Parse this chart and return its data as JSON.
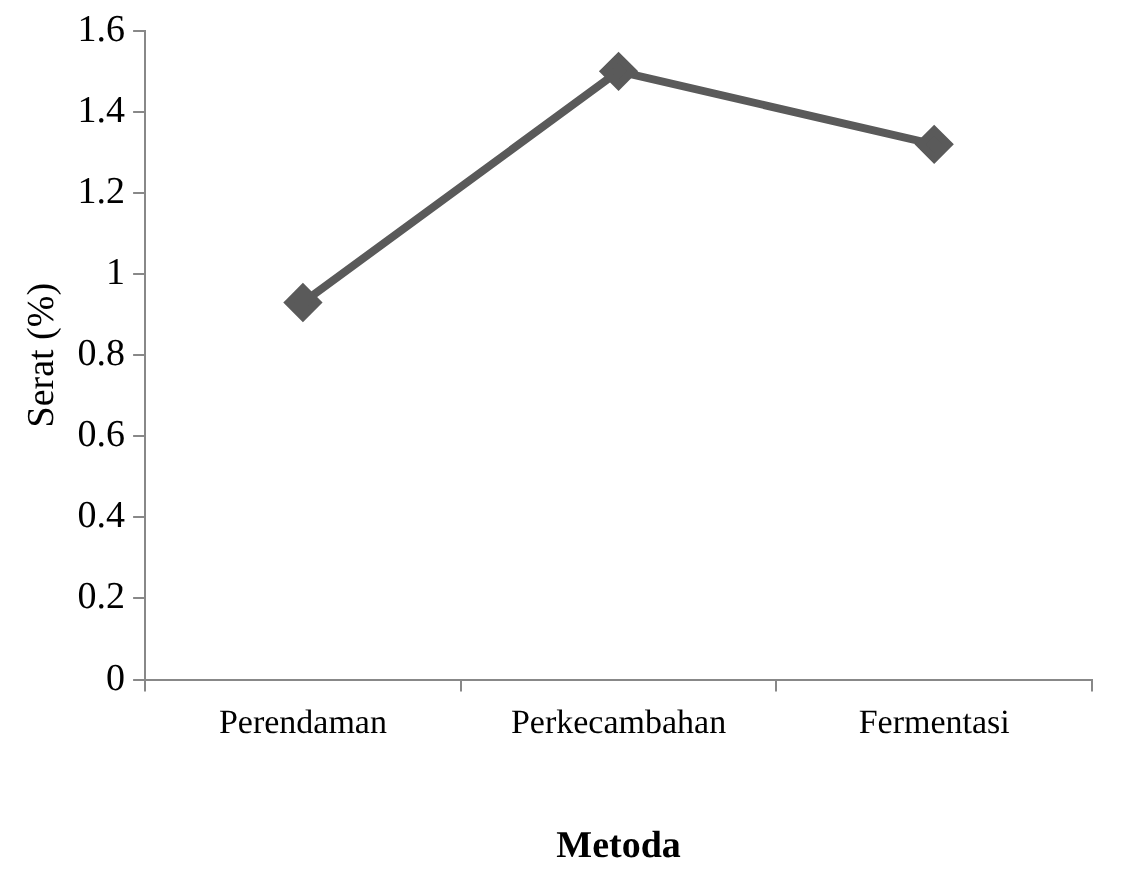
{
  "chart_data": {
    "type": "line",
    "xlabel": "Metoda",
    "ylabel": "Serat (%)",
    "categories": [
      "Perendaman",
      "Perkecambahan",
      "Fermentasi"
    ],
    "series": [
      {
        "color": "#5a5a5a",
        "values": [
          0.93,
          1.5,
          1.32
        ]
      }
    ],
    "ylim": [
      0,
      1.6
    ],
    "yticks": [
      0,
      0.2,
      0.4,
      0.6,
      0.8,
      1,
      1.2,
      1.4,
      1.6
    ],
    "grid": false,
    "legend": false,
    "marker": "diamond",
    "line_style": "solid"
  }
}
